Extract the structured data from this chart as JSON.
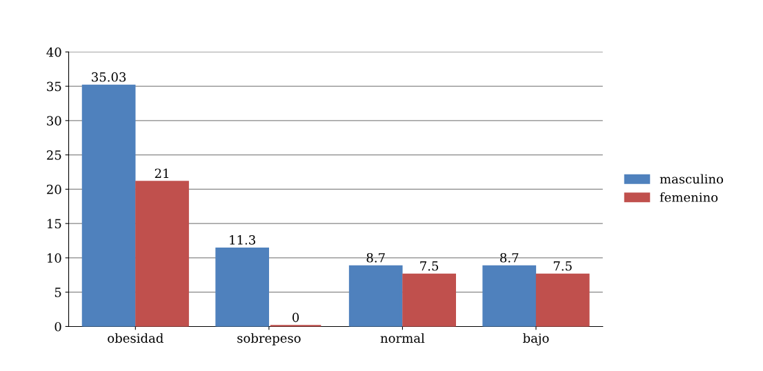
{
  "chart_data": {
    "type": "bar",
    "categories": [
      "obesidad",
      "sobrepeso",
      "normal",
      "bajo"
    ],
    "series": [
      {
        "name": "masculino",
        "color": "#4f81bd",
        "values": [
          35.03,
          11.3,
          8.7,
          8.7
        ]
      },
      {
        "name": "femenino",
        "color": "#c0504d",
        "values": [
          21,
          0,
          7.5,
          7.5
        ]
      }
    ],
    "ylim": [
      0,
      40
    ],
    "yticks": [
      0,
      5,
      10,
      15,
      20,
      25,
      30,
      35,
      40
    ],
    "grid": "y",
    "legend": "right",
    "data_labels": true
  }
}
